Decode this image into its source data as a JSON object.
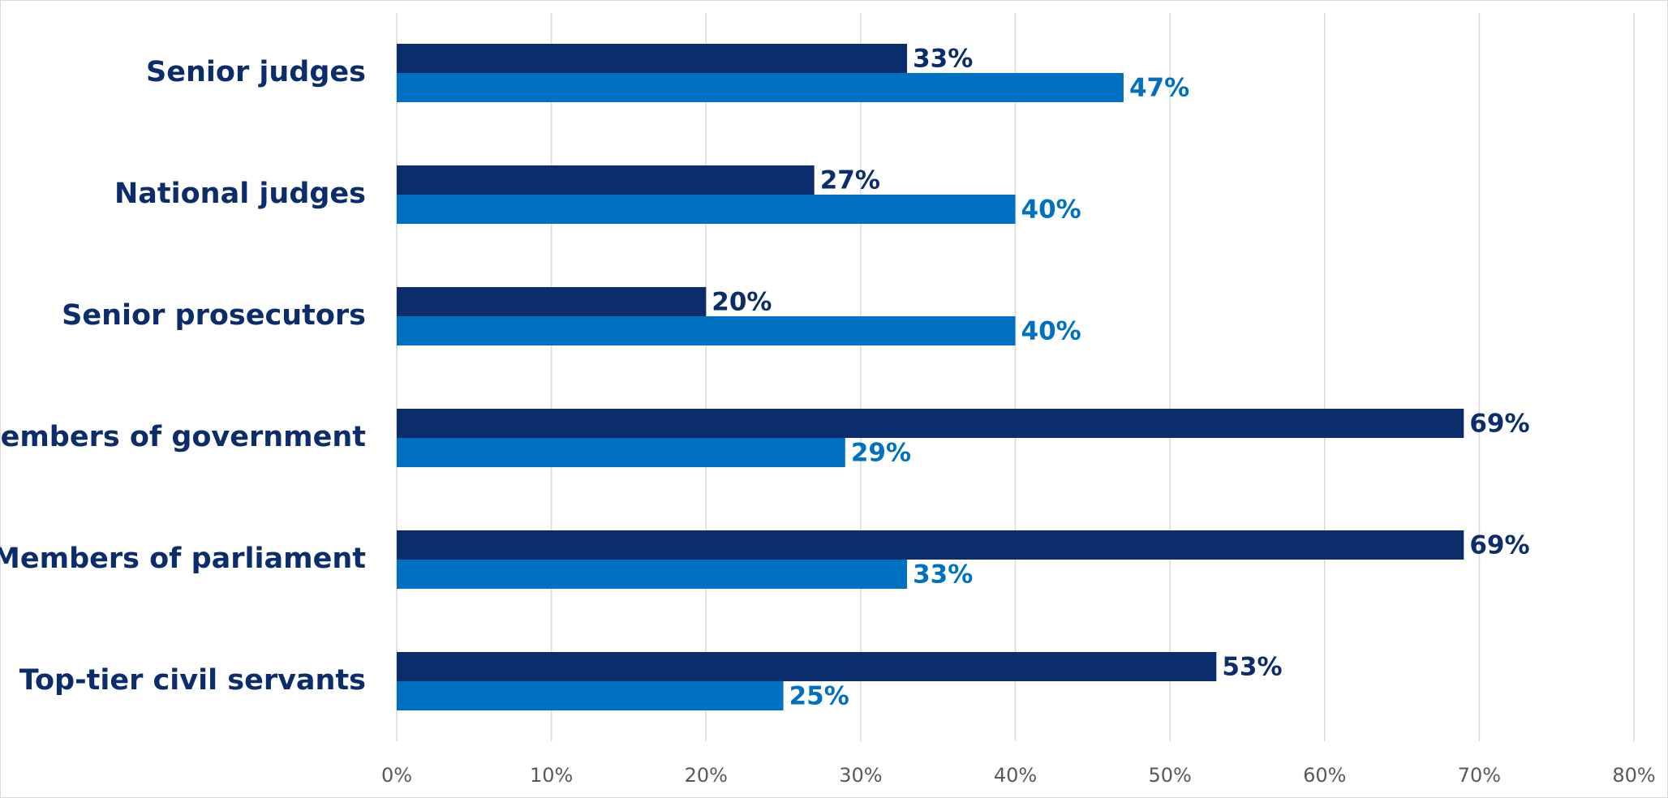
{
  "chart_data": {
    "type": "bar",
    "orientation": "horizontal",
    "categories": [
      "Senior judges",
      "National judges",
      "Senior prosecutors",
      "Members of government",
      "Members of parliament",
      "Top-tier civil servants"
    ],
    "series": [
      {
        "color": "#0b2d6b",
        "values": [
          33,
          27,
          20,
          69,
          69,
          53
        ],
        "value_labels": [
          "33%",
          "27%",
          "20%",
          "69%",
          "69%",
          "53%"
        ]
      },
      {
        "color": "#0070c0",
        "values": [
          47,
          40,
          40,
          29,
          33,
          25
        ],
        "value_labels": [
          "47%",
          "40%",
          "40%",
          "29%",
          "33%",
          "25%"
        ]
      }
    ],
    "xlim": [
      0,
      80
    ],
    "xticks": [
      {
        "value": 0,
        "label": "0%"
      },
      {
        "value": 10,
        "label": "10%"
      },
      {
        "value": 20,
        "label": "20%"
      },
      {
        "value": 30,
        "label": "30%"
      },
      {
        "value": 40,
        "label": "40%"
      },
      {
        "value": 50,
        "label": "50%"
      },
      {
        "value": 60,
        "label": "60%"
      },
      {
        "value": 70,
        "label": "70%"
      },
      {
        "value": 80,
        "label": "80%"
      }
    ],
    "grid": true
  }
}
